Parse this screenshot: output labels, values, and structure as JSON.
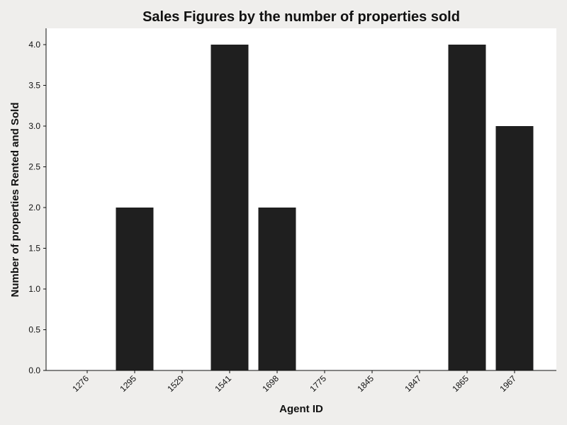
{
  "chart_data": {
    "type": "bar",
    "title": "Sales Figures by the number of properties sold",
    "xlabel": "Agent ID",
    "ylabel": "Number of properties Rented and Sold",
    "categories": [
      "1276",
      "1295",
      "1529",
      "1541",
      "1698",
      "1775",
      "1845",
      "1847",
      "1865",
      "1967"
    ],
    "values": [
      0,
      2,
      0,
      4,
      2,
      0,
      0,
      0,
      4,
      3
    ],
    "ylim": [
      0,
      4.2
    ],
    "yticks": [
      "0.0",
      "0.5",
      "1.0",
      "1.5",
      "2.0",
      "2.5",
      "3.0",
      "3.5",
      "4.0"
    ],
    "grid": false,
    "bar_color": "#1f1f1f",
    "plot_background": "#ffffff",
    "figure_background": "#efeeec"
  }
}
